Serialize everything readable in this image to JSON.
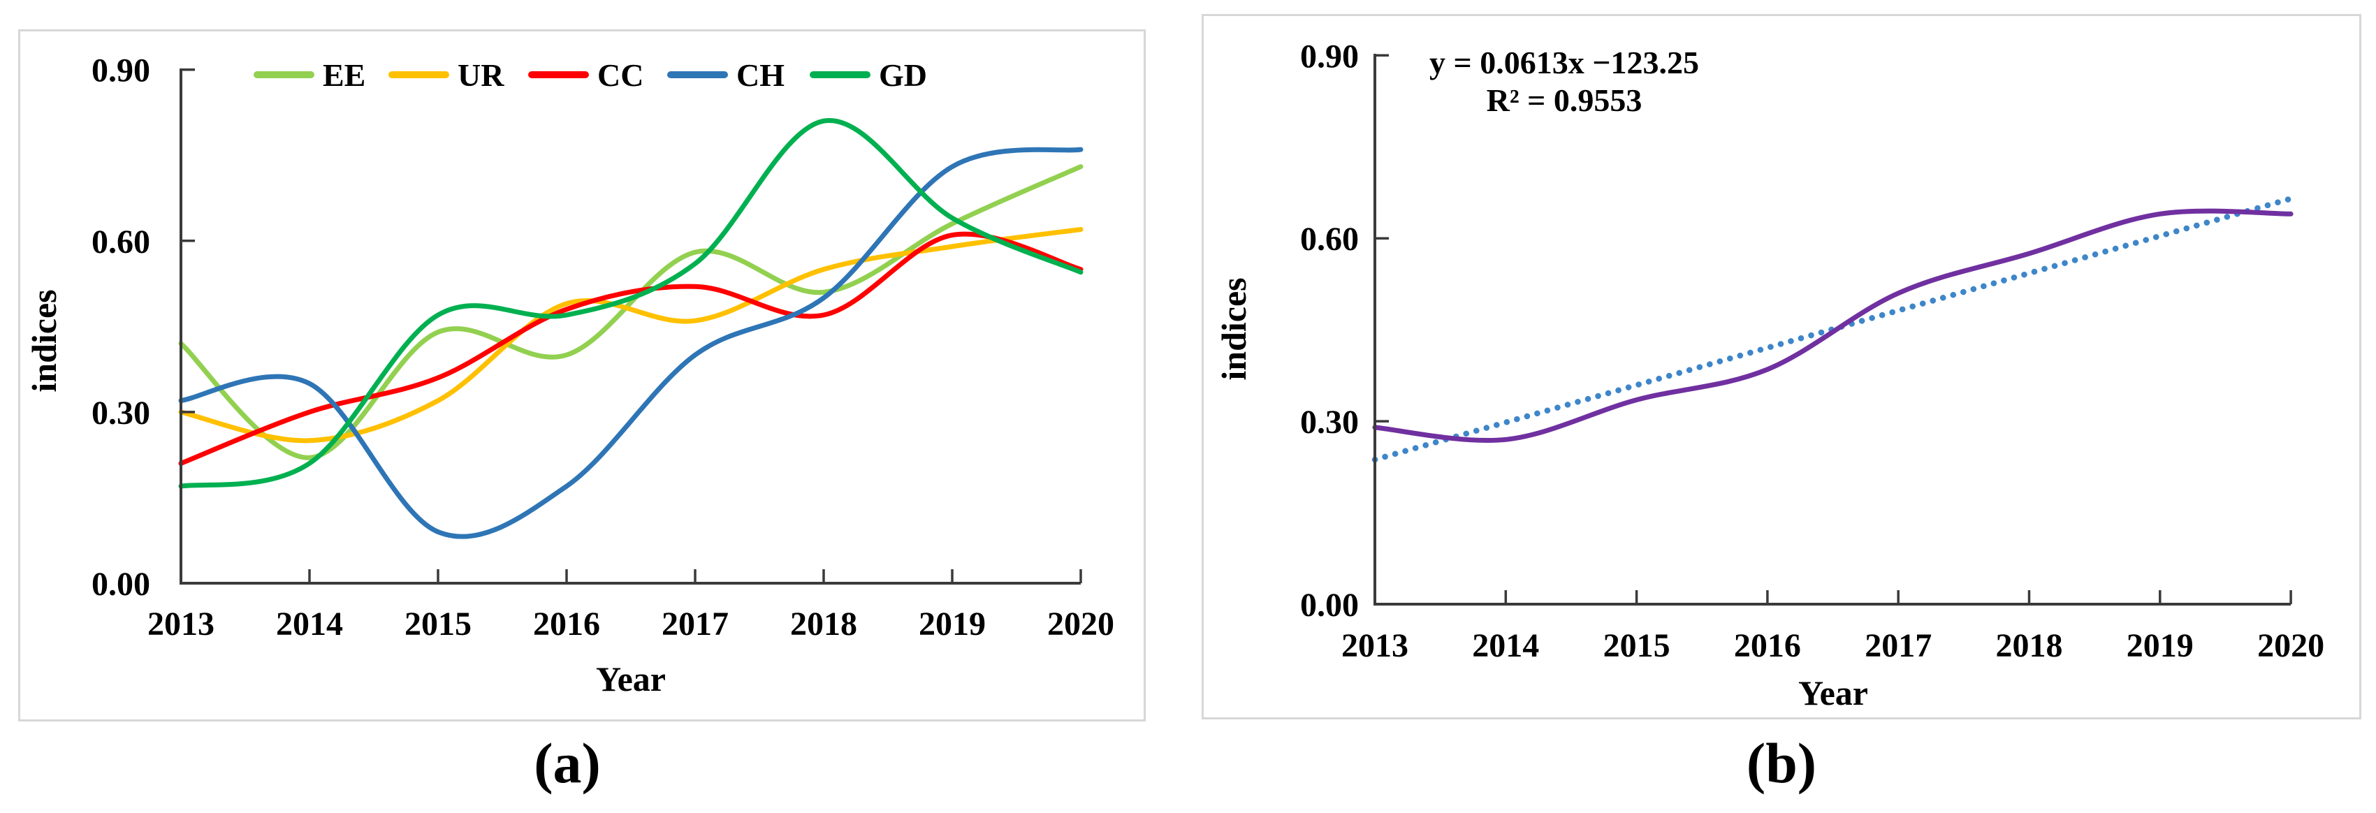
{
  "captions": {
    "a": "(a)",
    "b": "(b)"
  },
  "chart_data": [
    {
      "id": "a",
      "type": "line",
      "line_style": "smooth",
      "title": "",
      "xlabel": "Year",
      "ylabel": "indices",
      "x": [
        2013,
        2014,
        2015,
        2016,
        2017,
        2018,
        2019,
        2020
      ],
      "x_tick_labels": [
        "2013",
        "2014",
        "2015",
        "2016",
        "2017",
        "2018",
        "2019",
        "2020"
      ],
      "ylim": [
        0.0,
        0.9
      ],
      "y_ticks": [
        0.0,
        0.3,
        0.6,
        0.9
      ],
      "y_tick_labels": [
        "0.00",
        "0.30",
        "0.60",
        "0.90"
      ],
      "grid": false,
      "legend_position": "top-inside",
      "series": [
        {
          "name": "EE",
          "color": "#92D050",
          "values": [
            0.42,
            0.22,
            0.44,
            0.4,
            0.58,
            0.51,
            0.63,
            0.73
          ]
        },
        {
          "name": "UR",
          "color": "#FFC000",
          "values": [
            0.3,
            0.25,
            0.32,
            0.49,
            0.46,
            0.55,
            0.59,
            0.62
          ]
        },
        {
          "name": "CC",
          "color": "#FF0000",
          "values": [
            0.21,
            0.3,
            0.36,
            0.48,
            0.52,
            0.47,
            0.61,
            0.55
          ]
        },
        {
          "name": "CH",
          "color": "#2E75B6",
          "values": [
            0.32,
            0.35,
            0.09,
            0.17,
            0.4,
            0.5,
            0.73,
            0.76
          ]
        },
        {
          "name": "GD",
          "color": "#00B050",
          "values": [
            0.17,
            0.21,
            0.47,
            0.47,
            0.56,
            0.81,
            0.64,
            0.545
          ]
        }
      ]
    },
    {
      "id": "b",
      "type": "line",
      "line_style": "smooth",
      "title": "",
      "xlabel": "Year",
      "ylabel": "indices",
      "x": [
        2013,
        2014,
        2015,
        2016,
        2017,
        2018,
        2019,
        2020
      ],
      "x_tick_labels": [
        "2013",
        "2014",
        "2015",
        "2016",
        "2017",
        "2018",
        "2019",
        "2020"
      ],
      "ylim": [
        0.0,
        0.9
      ],
      "y_ticks": [
        0.0,
        0.3,
        0.6,
        0.9
      ],
      "y_tick_labels": [
        "0.00",
        "0.30",
        "0.60",
        "0.90"
      ],
      "grid": false,
      "series": [
        {
          "name": "indices",
          "color": "#7030A0",
          "values": [
            0.29,
            0.27,
            0.335,
            0.385,
            0.51,
            0.575,
            0.64,
            0.64
          ]
        }
      ],
      "trendline": {
        "style": "dotted",
        "color": "#3E86C9",
        "y_start": 0.237,
        "y_end": 0.665,
        "equation": "y = 0.0613x −123.25",
        "r_squared": "R² = 0.9553"
      }
    }
  ]
}
